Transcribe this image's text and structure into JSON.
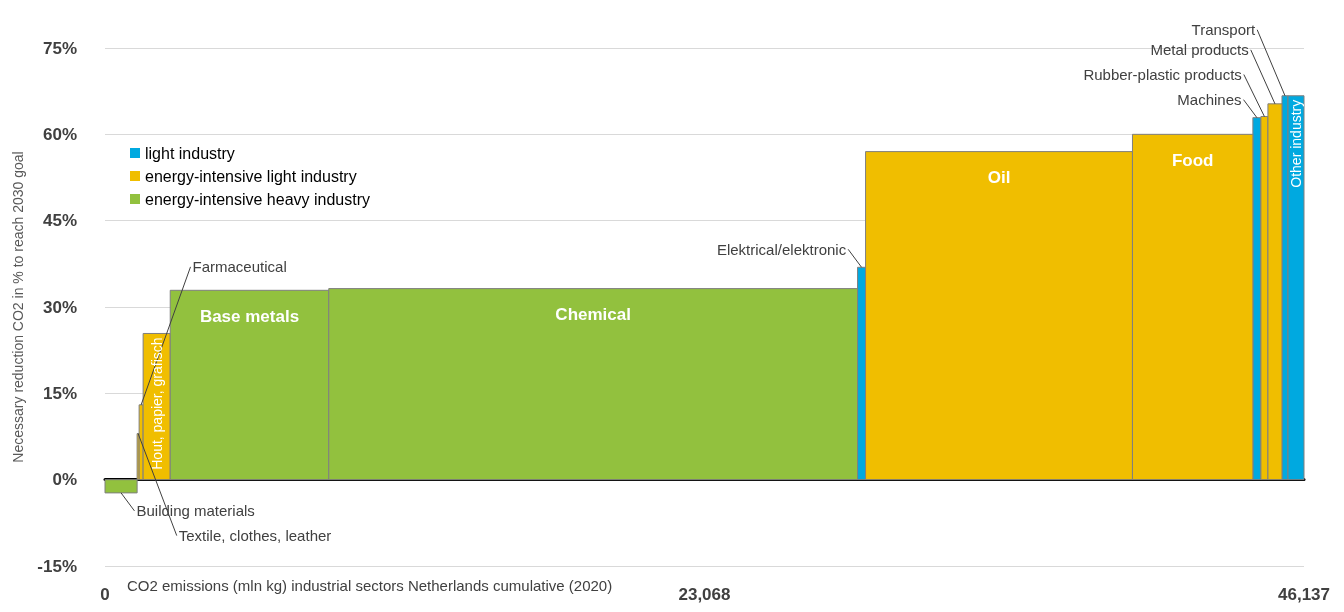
{
  "chart_data": {
    "type": "histogram",
    "ylabel": "Necessary reduction CO2 in % to reach 2030 goal",
    "xlabel": "CO2 emissions (mln kg) industrial sectors Netherlands cumulative (2020)",
    "bins": [
      0,
      1236,
      1313,
      1467,
      2510,
      8610,
      28958,
      29266,
      39537,
      44170,
      44479,
      44749,
      45290,
      45521,
      46137
    ],
    "series": [
      {
        "name": "light industry",
        "color": "#00a9e0",
        "values": [
          null,
          null,
          null,
          null,
          null,
          null,
          36.9,
          null,
          null,
          62.9,
          null,
          null,
          66.7,
          66.7
        ]
      },
      {
        "name": "energy-intensive light industry",
        "color": "#f0be00",
        "values": [
          null,
          8,
          13,
          25.4,
          null,
          null,
          null,
          57,
          60,
          null,
          63.1,
          65.3,
          null,
          null
        ]
      },
      {
        "name": "energy-intensive heavy industry",
        "color": "#92c13e",
        "values": [
          -2.3,
          null,
          null,
          null,
          32.9,
          33.2,
          null,
          null,
          null,
          null,
          null,
          null,
          null,
          null
        ]
      }
    ],
    "xlim": [
      0,
      46137
    ],
    "xticks": [
      0,
      {
        "value": 23068,
        "label": "23,068"
      },
      {
        "value": 46137,
        "label": "46,137"
      }
    ],
    "ylim": [
      -15,
      75
    ],
    "yticks": [
      {
        "value": -15,
        "label": "-15%"
      },
      {
        "value": 0,
        "label": "0%"
      },
      {
        "value": 15,
        "label": "15%"
      },
      {
        "value": 30,
        "label": "30%"
      },
      {
        "value": 45,
        "label": "45%"
      },
      {
        "value": 60,
        "label": "60%"
      },
      {
        "value": 75,
        "label": "75%"
      }
    ],
    "grid": "y",
    "legend": "top left",
    "annotations": [
      {
        "text": "Building materials",
        "x": 618,
        "y": -2.3
      },
      {
        "text": "Textile, clothes, leather",
        "x": 1275,
        "y": 8
      },
      {
        "text": "Farmaceutical",
        "x": 1390,
        "y": 13
      },
      {
        "text": "Hout, papier, grafisch",
        "x": 1989,
        "y": 25.4
      },
      {
        "text": "Base metals",
        "x": 5560,
        "y": 32.9
      },
      {
        "text": "Chemical",
        "x": 18784,
        "y": 33.2
      },
      {
        "text": "Elektrical/elektronic",
        "x": 29112,
        "y": 36.9
      },
      {
        "text": "Oil",
        "x": 34402,
        "y": 57
      },
      {
        "text": "Food",
        "x": 41854,
        "y": 60
      },
      {
        "text": "Machines",
        "x": 44325,
        "y": 62.9
      },
      {
        "text": "Rubber-plastic products",
        "x": 44614,
        "y": 63.1
      },
      {
        "text": "Metal products",
        "x": 45020,
        "y": 65.3
      },
      {
        "text": "Transport",
        "x": 45406,
        "y": 66.7
      },
      {
        "text": "Other industry",
        "x": 45829,
        "y": 66.7
      }
    ]
  }
}
